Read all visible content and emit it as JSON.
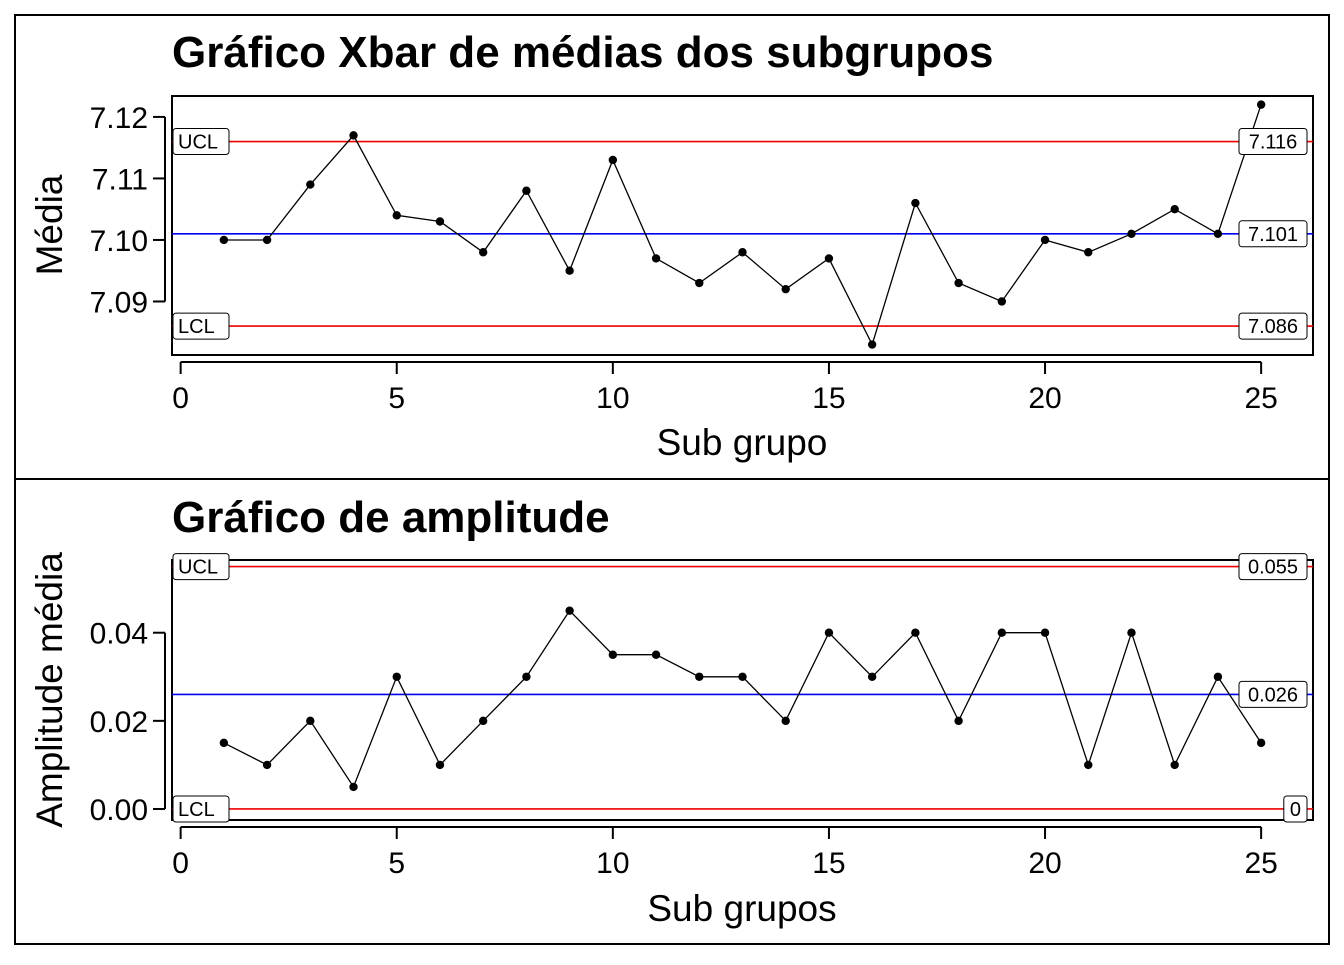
{
  "colors": {
    "center_line": "#0000ee",
    "control_limits": "#ee0000",
    "series": "#000000",
    "frame": "#000000"
  },
  "chart_data": [
    {
      "type": "line",
      "title": "Gráfico Xbar de médias dos subgrupos",
      "xlabel": "Sub grupo",
      "ylabel": "Média",
      "xlim": [
        -0.2,
        26.2
      ],
      "ylim": [
        7.0813,
        7.1234
      ],
      "xticks": [
        0,
        5,
        10,
        15,
        20,
        25
      ],
      "yticks": [
        "7.09",
        "7.10",
        "7.11",
        "7.12"
      ],
      "x": [
        1,
        2,
        3,
        4,
        5,
        6,
        7,
        8,
        9,
        10,
        11,
        12,
        13,
        14,
        15,
        16,
        17,
        18,
        19,
        20,
        21,
        22,
        23,
        24,
        25
      ],
      "values": [
        7.1,
        7.1,
        7.109,
        7.117,
        7.104,
        7.103,
        7.098,
        7.108,
        7.095,
        7.113,
        7.097,
        7.093,
        7.098,
        7.092,
        7.097,
        7.083,
        7.106,
        7.093,
        7.09,
        7.1,
        7.098,
        7.101,
        7.105,
        7.101,
        7.122
      ],
      "control_lines": [
        {
          "name": "UCL",
          "value": 7.116,
          "label": "7.116",
          "kind": "limit"
        },
        {
          "name": "",
          "value": 7.101,
          "label": "7.101",
          "kind": "center"
        },
        {
          "name": "LCL",
          "value": 7.086,
          "label": "7.086",
          "kind": "limit"
        }
      ],
      "grid": false,
      "legend": "none"
    },
    {
      "type": "line",
      "title": "Gráfico de amplitude",
      "xlabel": "Sub grupos",
      "ylabel": "Amplitude média",
      "xlim": [
        -0.2,
        26.2
      ],
      "ylim": [
        -0.0025,
        0.0565
      ],
      "xticks": [
        0,
        5,
        10,
        15,
        20,
        25
      ],
      "yticks": [
        "0.00",
        "0.02",
        "0.04"
      ],
      "x": [
        1,
        2,
        3,
        4,
        5,
        6,
        7,
        8,
        9,
        10,
        11,
        12,
        13,
        14,
        15,
        16,
        17,
        18,
        19,
        20,
        21,
        22,
        23,
        24,
        25
      ],
      "values": [
        0.015,
        0.01,
        0.02,
        0.005,
        0.03,
        0.01,
        0.02,
        0.03,
        0.045,
        0.035,
        0.035,
        0.03,
        0.03,
        0.02,
        0.04,
        0.03,
        0.04,
        0.02,
        0.04,
        0.04,
        0.01,
        0.04,
        0.01,
        0.03,
        0.015
      ],
      "control_lines": [
        {
          "name": "UCL",
          "value": 0.055,
          "label": "0.055",
          "kind": "limit"
        },
        {
          "name": "",
          "value": 0.026,
          "label": "0.026",
          "kind": "center"
        },
        {
          "name": "LCL",
          "value": 0.0,
          "label": "0",
          "kind": "limit"
        }
      ],
      "grid": false,
      "legend": "none"
    }
  ]
}
